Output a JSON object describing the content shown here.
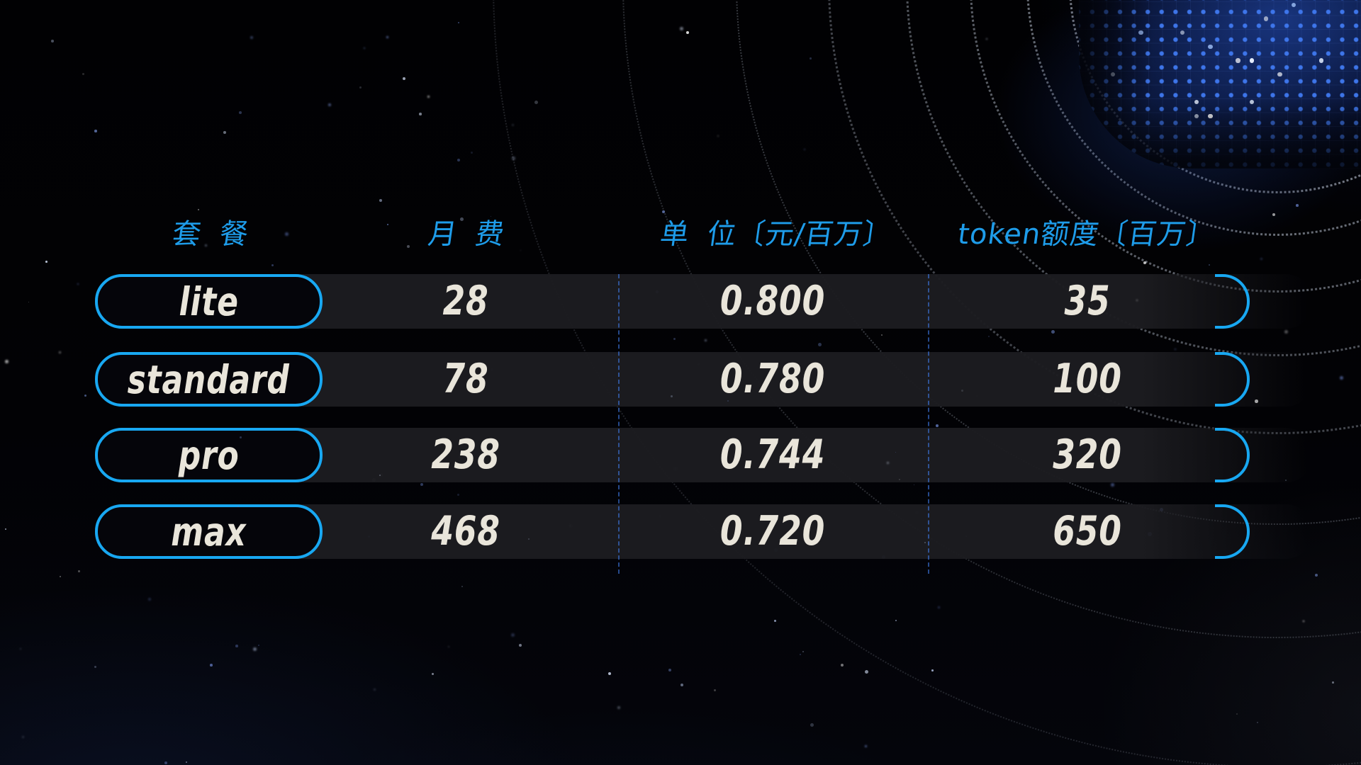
{
  "chart_data": {
    "type": "table",
    "columns": [
      "套 餐",
      "月 费",
      "单 位〔元/百万〕",
      "token额度〔百万〕"
    ],
    "rows": [
      {
        "plan": "lite",
        "fee": "28",
        "unit": "0.800",
        "quota": "35"
      },
      {
        "plan": "standard",
        "fee": "78",
        "unit": "0.780",
        "quota": "100"
      },
      {
        "plan": "pro",
        "fee": "238",
        "unit": "0.744",
        "quota": "320"
      },
      {
        "plan": "max",
        "fee": "468",
        "unit": "0.720",
        "quota": "650"
      }
    ]
  },
  "colors": {
    "accent_blue": "#18a8f2",
    "header_text_blue": "#1e9ce9",
    "value_text_cream": "#e9e5da",
    "row_band": "#1c1c20",
    "pill_fill": "#05050a",
    "dot_grid_blue": "#407af2",
    "dashed_line_blue": "#3e76de",
    "background": "#020205"
  }
}
